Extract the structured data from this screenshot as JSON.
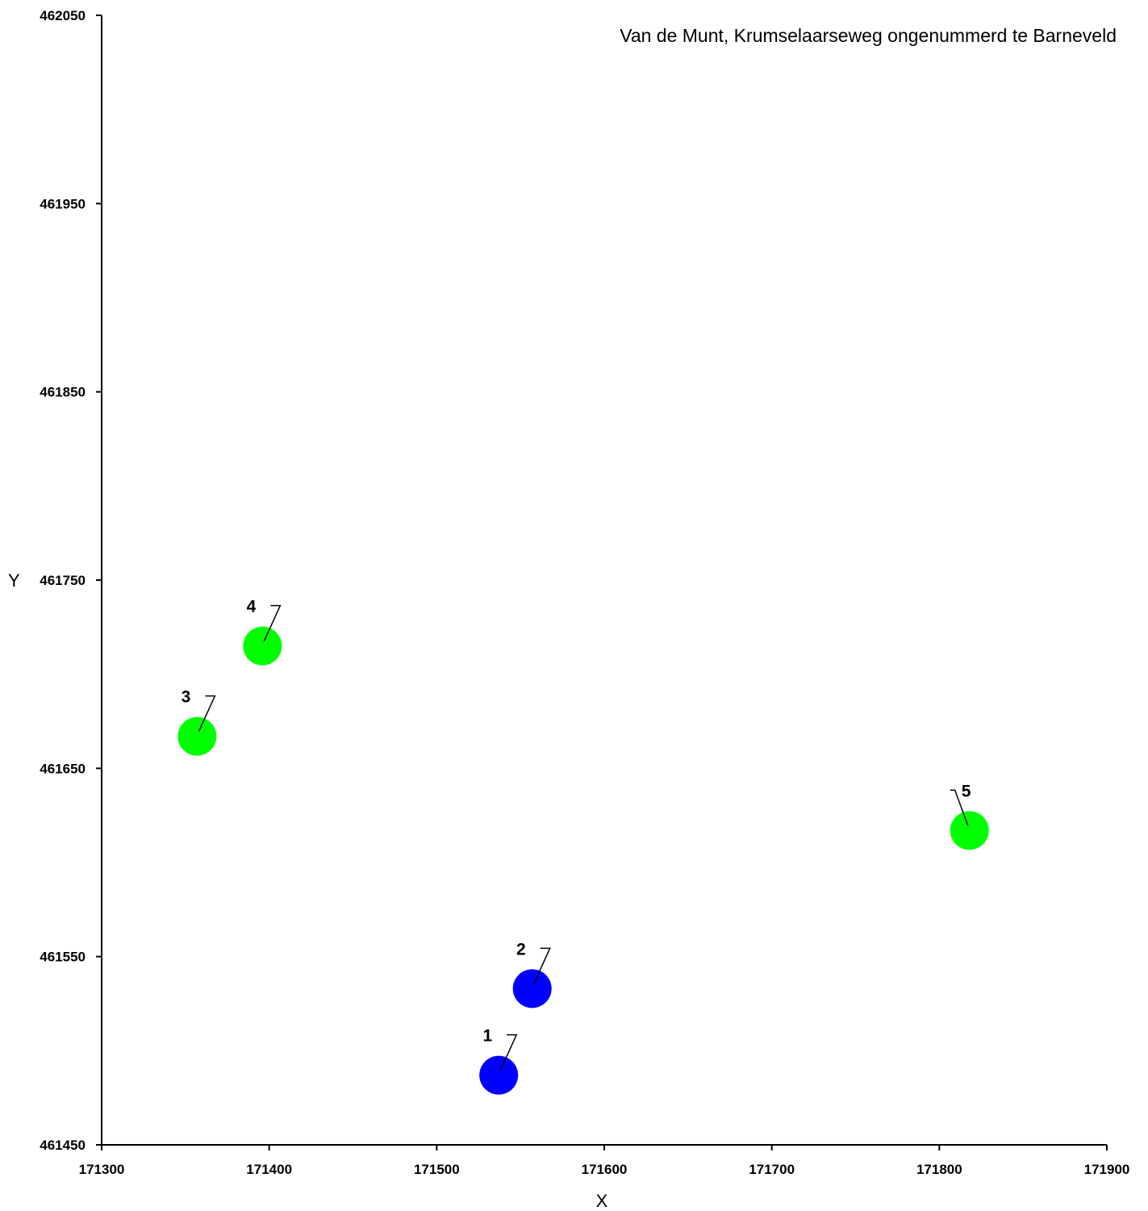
{
  "chart_data": {
    "type": "scatter",
    "title": "Van de Munt, Krumselaarseweg ongenummerd te Barneveld",
    "xlabel": "X",
    "ylabel": "Y",
    "xlim": [
      171300,
      171900
    ],
    "ylim": [
      461450,
      462050
    ],
    "x_ticks": [
      171300,
      171400,
      171500,
      171600,
      171700,
      171800,
      171900
    ],
    "y_ticks": [
      461450,
      461550,
      461650,
      461750,
      461850,
      461950,
      462050
    ],
    "x_tick_labels": [
      "171300",
      "171400",
      "171500",
      "171600",
      "171700",
      "171800",
      "171900"
    ],
    "y_tick_labels": [
      "461450",
      "461550",
      "461650",
      "461750",
      "461850",
      "461950",
      "462050"
    ],
    "grid": false,
    "points": [
      {
        "label": "1",
        "x": 171537,
        "y": 461487,
        "color": "#0000ff",
        "label_side": "right"
      },
      {
        "label": "2",
        "x": 171557,
        "y": 461533,
        "color": "#0000ff",
        "label_side": "right"
      },
      {
        "label": "3",
        "x": 171357,
        "y": 461667,
        "color": "#00ff00",
        "label_side": "right"
      },
      {
        "label": "4",
        "x": 171396,
        "y": 461715,
        "color": "#00ff00",
        "label_side": "right"
      },
      {
        "label": "5",
        "x": 171818,
        "y": 461617,
        "color": "#00ff00",
        "label_side": "left"
      }
    ]
  }
}
